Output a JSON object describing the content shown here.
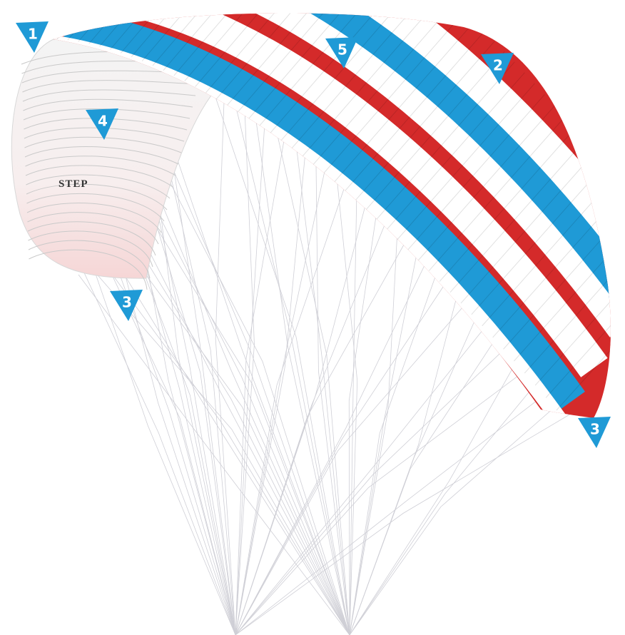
{
  "glider": {
    "logo": "STEP"
  },
  "markers": [
    {
      "label": "1"
    },
    {
      "label": "2"
    },
    {
      "label": "3"
    },
    {
      "label": "3"
    },
    {
      "label": "4"
    },
    {
      "label": "5"
    }
  ]
}
